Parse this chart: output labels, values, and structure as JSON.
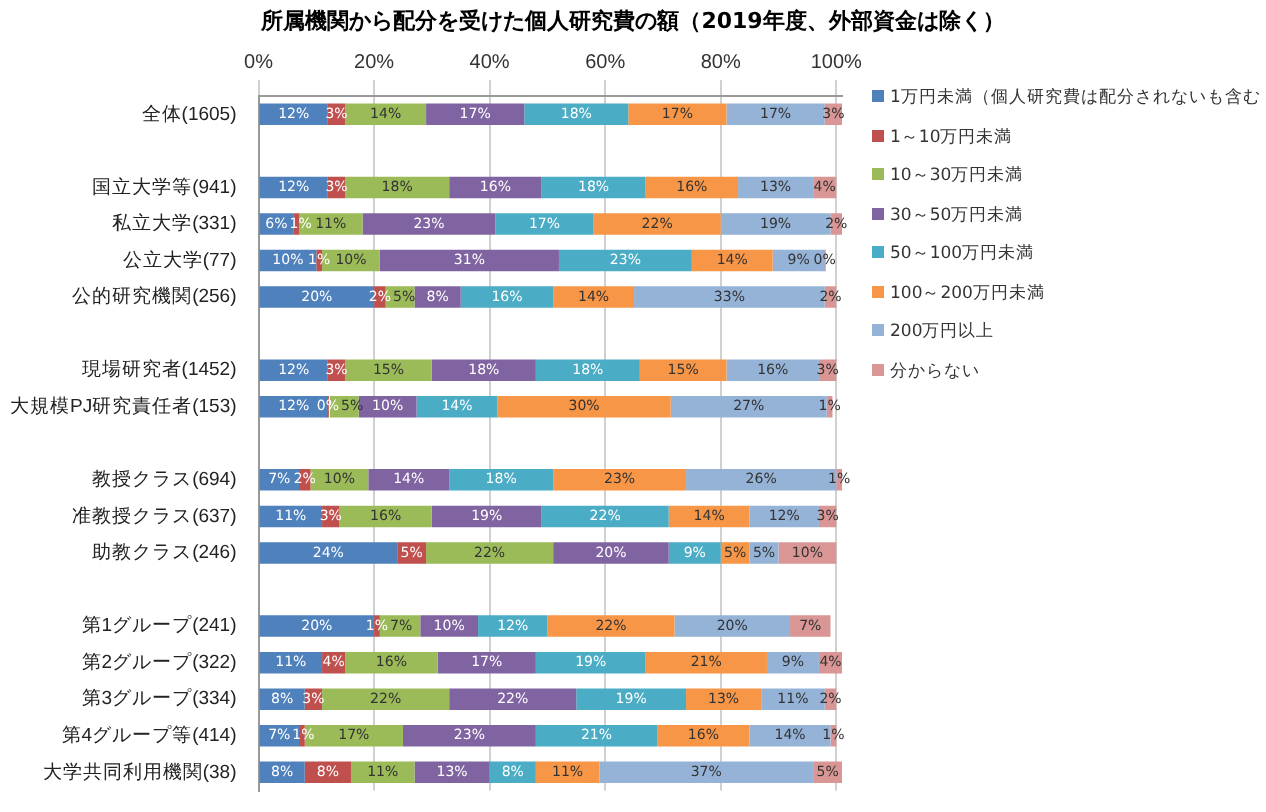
{
  "chart_data": {
    "type": "bar",
    "orientation": "horizontal",
    "stacked": true,
    "title": "所属機関から配分を受けた個人研究費の額（2019年度、外部資金は除く）",
    "categories": [
      "全体(1605)",
      null,
      "国立大学等(941)",
      "私立大学(331)",
      "公立大学(77)",
      "公的研究機関(256)",
      null,
      "現場研究者(1452)",
      "大規模PJ研究責任者(153)",
      null,
      "教授クラス(694)",
      "准教授クラス(637)",
      "助教クラス(246)",
      null,
      "第1グループ(241)",
      "第2グループ(322)",
      "第3グループ(334)",
      "第4グループ等(414)",
      "大学共同利用機関(38)"
    ],
    "series": [
      {
        "name": "1万円未満（個人研究費は配分されないも含む",
        "color": "#4f81bd",
        "values": [
          12,
          null,
          12,
          6,
          10,
          20,
          null,
          12,
          12,
          null,
          7,
          11,
          24,
          null,
          20,
          11,
          8,
          7,
          8
        ],
        "value_labels": [
          "12%",
          null,
          "12%",
          "6%",
          "10%",
          "20%",
          null,
          "12%",
          "12%",
          null,
          "7%",
          "11%",
          "24%",
          null,
          "20%",
          "11%",
          "8%",
          "7%",
          "8%"
        ]
      },
      {
        "name": "1～10万円未満",
        "color": "#c0504d",
        "values": [
          3,
          null,
          3,
          1,
          1,
          2,
          null,
          3,
          0,
          null,
          2,
          3,
          5,
          null,
          1,
          4,
          3,
          1,
          8
        ],
        "value_labels": [
          "3%",
          null,
          "3%",
          "1%",
          "1%",
          "2%",
          null,
          "3%",
          "0%",
          null,
          "2%",
          "3%",
          "5%",
          null,
          "1%",
          "4%",
          "3%",
          "1%",
          "8%"
        ]
      },
      {
        "name": "10～30万円未満",
        "color": "#9bbb59",
        "values": [
          14,
          null,
          18,
          11,
          10,
          5,
          null,
          15,
          5,
          null,
          10,
          16,
          22,
          null,
          7,
          16,
          22,
          17,
          11
        ],
        "value_labels": [
          "14%",
          null,
          "18%",
          "11%",
          "10%",
          "5%",
          null,
          "15%",
          "5%",
          null,
          "10%",
          "16%",
          "22%",
          null,
          "7%",
          "16%",
          "22%",
          "17%",
          "11%"
        ]
      },
      {
        "name": "30～50万円未満",
        "color": "#8064a2",
        "values": [
          17,
          null,
          16,
          23,
          31,
          8,
          null,
          18,
          10,
          null,
          14,
          19,
          20,
          null,
          10,
          17,
          22,
          23,
          13
        ],
        "value_labels": [
          "17%",
          null,
          "16%",
          "23%",
          "31%",
          "8%",
          null,
          "18%",
          "10%",
          null,
          "14%",
          "19%",
          "20%",
          null,
          "10%",
          "17%",
          "22%",
          "23%",
          "13%"
        ]
      },
      {
        "name": "50～100万円未満",
        "color": "#4bacc6",
        "values": [
          18,
          null,
          18,
          17,
          23,
          16,
          null,
          18,
          14,
          null,
          18,
          22,
          9,
          null,
          12,
          19,
          19,
          21,
          8
        ],
        "value_labels": [
          "18%",
          null,
          "18%",
          "17%",
          "23%",
          "16%",
          null,
          "18%",
          "14%",
          null,
          "18%",
          "22%",
          "9%",
          null,
          "12%",
          "19%",
          "19%",
          "21%",
          "8%"
        ]
      },
      {
        "name": "100～200万円未満",
        "color": "#f79646",
        "values": [
          17,
          null,
          16,
          22,
          14,
          14,
          null,
          15,
          30,
          null,
          23,
          14,
          5,
          null,
          22,
          21,
          13,
          16,
          11
        ],
        "value_labels": [
          "17%",
          null,
          "16%",
          "22%",
          "14%",
          "14%",
          null,
          "15%",
          "30%",
          null,
          "23%",
          "14%",
          "5%",
          null,
          "22%",
          "21%",
          "13%",
          "16%",
          "11%"
        ]
      },
      {
        "name": "200万円以上",
        "color": "#95b3d7",
        "values": [
          17,
          null,
          13,
          19,
          9,
          33,
          null,
          16,
          27,
          null,
          26,
          12,
          5,
          null,
          20,
          9,
          11,
          14,
          37
        ],
        "value_labels": [
          "17%",
          null,
          "13%",
          "19%",
          "9%",
          "33%",
          null,
          "16%",
          "27%",
          null,
          "26%",
          "12%",
          "5%",
          null,
          "20%",
          "9%",
          "11%",
          "14%",
          "37%"
        ]
      },
      {
        "name": "分からない",
        "color": "#d99694",
        "values": [
          3,
          null,
          4,
          2,
          0,
          2,
          null,
          3,
          1,
          null,
          1,
          3,
          10,
          null,
          7,
          4,
          2,
          1,
          5
        ],
        "value_labels": [
          "3%",
          null,
          "4%",
          "2%",
          "0%",
          "2%",
          null,
          "3%",
          "1%",
          null,
          "1%",
          "3%",
          "10%",
          null,
          "7%",
          "4%",
          "2%",
          "1%",
          "5%"
        ]
      }
    ],
    "xlim": [
      0,
      101
    ],
    "xticks": [
      {
        "value": 0,
        "label": "0%"
      },
      {
        "value": 20,
        "label": "20%"
      },
      {
        "value": 40,
        "label": "40%"
      },
      {
        "value": 60,
        "label": "60%"
      },
      {
        "value": 80,
        "label": "80%"
      },
      {
        "value": 100,
        "label": "100%"
      }
    ],
    "grid": "x",
    "legend": "top right"
  }
}
